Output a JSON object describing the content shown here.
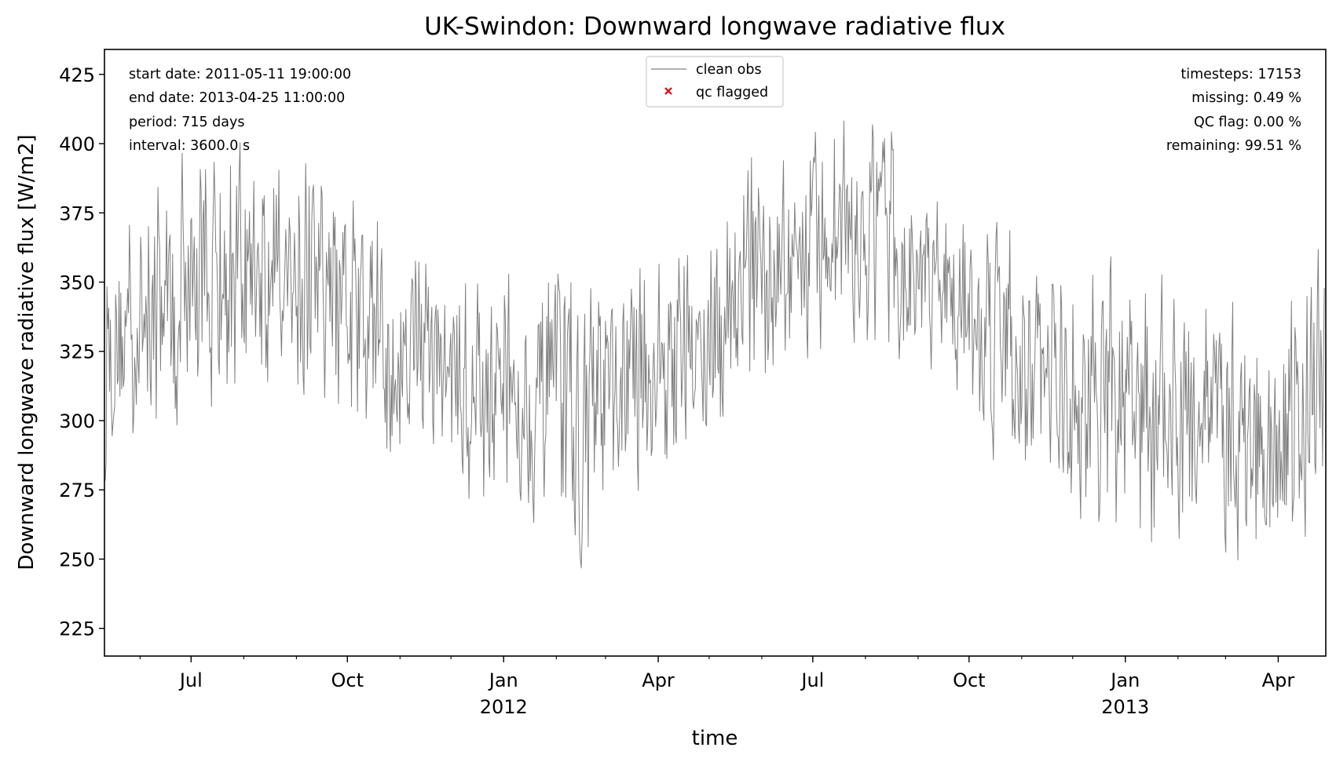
{
  "chart_data": {
    "type": "line",
    "title": "UK-Swindon: Downward longwave radiative flux",
    "xlabel": "time",
    "ylabel": "Downward longwave radiative flux [W/m2]",
    "xlim": [
      "2011-05-11",
      "2013-04-29"
    ],
    "ylim": [
      215,
      434
    ],
    "y_ticks": [
      225,
      250,
      275,
      300,
      325,
      350,
      375,
      400,
      425
    ],
    "x_ticks": [
      {
        "date": "2011-07-01",
        "label": "Jul",
        "sublabel": ""
      },
      {
        "date": "2011-10-01",
        "label": "Oct",
        "sublabel": ""
      },
      {
        "date": "2012-01-01",
        "label": "Jan",
        "sublabel": "2012"
      },
      {
        "date": "2012-04-01",
        "label": "Apr",
        "sublabel": ""
      },
      {
        "date": "2012-07-01",
        "label": "Jul",
        "sublabel": ""
      },
      {
        "date": "2012-10-01",
        "label": "Oct",
        "sublabel": ""
      },
      {
        "date": "2013-01-01",
        "label": "Jan",
        "sublabel": "2013"
      },
      {
        "date": "2013-04-01",
        "label": "Apr",
        "sublabel": ""
      }
    ],
    "grid": false,
    "legend_position": "top-center",
    "legend": [
      {
        "label": "clean obs",
        "marker": "line",
        "color": "#808080"
      },
      {
        "label": "qc flagged",
        "marker": "x",
        "color": "#e8000b"
      }
    ],
    "stats_left": [
      "start date: 2011-05-11 19:00:00",
      "end date: 2013-04-25 11:00:00",
      "period: 715 days",
      "interval: 3600.0 s"
    ],
    "stats_right": [
      "timesteps: 17153",
      "missing: 0.49 %",
      "QC flag: 0.00 %",
      "remaining: 99.51 %"
    ],
    "series": [
      {
        "name": "clean obs",
        "color": "#808080",
        "x": [
          "2011-05-11",
          "2011-05-25",
          "2011-06-08",
          "2011-06-22",
          "2011-07-06",
          "2011-07-20",
          "2011-08-03",
          "2011-08-17",
          "2011-08-31",
          "2011-09-14",
          "2011-09-28",
          "2011-10-12",
          "2011-10-26",
          "2011-11-09",
          "2011-11-23",
          "2011-12-07",
          "2011-12-21",
          "2012-01-04",
          "2012-01-18",
          "2012-02-01",
          "2012-02-15",
          "2012-02-29",
          "2012-03-14",
          "2012-03-28",
          "2012-04-11",
          "2012-04-25",
          "2012-05-09",
          "2012-05-23",
          "2012-06-06",
          "2012-06-20",
          "2012-07-04",
          "2012-07-18",
          "2012-08-01",
          "2012-08-15",
          "2012-08-29",
          "2012-09-12",
          "2012-09-26",
          "2012-10-10",
          "2012-10-24",
          "2012-11-07",
          "2012-11-21",
          "2012-12-05",
          "2012-12-19",
          "2013-01-02",
          "2013-01-16",
          "2013-01-30",
          "2013-02-13",
          "2013-02-27",
          "2013-03-13",
          "2013-03-27",
          "2013-04-10",
          "2013-04-25"
        ],
        "y_min": [
          272,
          282,
          285,
          290,
          296,
          296,
          305,
          305,
          302,
          300,
          292,
          285,
          268,
          288,
          272,
          262,
          255,
          258,
          245,
          252,
          228,
          250,
          265,
          262,
          280,
          270,
          285,
          302,
          305,
          315,
          318,
          318,
          318,
          318,
          310,
          310,
          300,
          282,
          275,
          265,
          255,
          255,
          252,
          245,
          240,
          250,
          252,
          248,
          238,
          240,
          235,
          265
        ],
        "y_max": [
          368,
          385,
          395,
          412,
          410,
          405,
          412,
          403,
          408,
          400,
          395,
          390,
          384,
          372,
          366,
          364,
          360,
          366,
          366,
          368,
          362,
          365,
          370,
          365,
          366,
          372,
          385,
          410,
          392,
          412,
          408,
          418,
          418,
          420,
          388,
          386,
          380,
          375,
          382,
          372,
          365,
          362,
          368,
          372,
          365,
          355,
          360,
          362,
          350,
          338,
          372,
          375
        ]
      }
    ]
  }
}
